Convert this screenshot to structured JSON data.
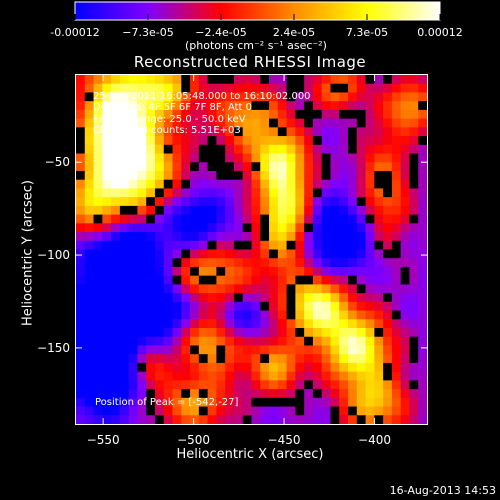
{
  "colorbar": {
    "labels": [
      "-0.00012",
      "−7.3e-05",
      "−2.4e-05",
      "2.4e-05",
      "7.3e-05",
      "0.00012"
    ],
    "unit": "(photons cm⁻² s⁻¹ asec⁻²)"
  },
  "info": {
    "line1": "25-Mar-2011 16:05:48.000 to 16:10:02.000",
    "line2": "Detectors: 4F 5F 6F 7F 8F, Att 0",
    "line3": "Energy Range: 25.0 - 50.0 keV",
    "line4": "Clean   Total counts: 5.51E+03"
  },
  "peak_label": "Position of Peak = [-542,-27]",
  "date_stamp": "16-Aug-2013 14:53",
  "chart_data": {
    "type": "heatmap",
    "title": "Reconstructed RHESSI Image",
    "xlabel": "Heliocentric X (arcsec)",
    "ylabel": "Heliocentric Y (arcsec)",
    "xlim": [
      -565,
      -371
    ],
    "ylim": [
      -191,
      -3
    ],
    "xticks": [
      -550,
      -500,
      -450,
      -400
    ],
    "yticks": [
      -50,
      -100,
      -150
    ],
    "xtick_labels": [
      "−550",
      "−500",
      "−450",
      "−400"
    ],
    "ytick_labels": [
      "−50",
      "−100",
      "−150"
    ],
    "color_range": [
      -0.00012,
      0.00012
    ],
    "colormap": [
      "#0000ff",
      "#7f00ff",
      "#ff0000",
      "#ff8c00",
      "#ffff00",
      "#ffffff"
    ],
    "sources": [
      {
        "x": -542,
        "y": -27,
        "amp": 1.0,
        "sx": 14,
        "sy": 22
      },
      {
        "x": -530,
        "y": -55,
        "amp": 0.7,
        "sx": 16,
        "sy": 18
      },
      {
        "x": -555,
        "y": -75,
        "amp": 0.55,
        "sx": 12,
        "sy": 16
      },
      {
        "x": -515,
        "y": -10,
        "amp": 0.6,
        "sx": 12,
        "sy": 10
      },
      {
        "x": -470,
        "y": -25,
        "amp": 0.5,
        "sx": 14,
        "sy": 12
      },
      {
        "x": -450,
        "y": -75,
        "amp": 0.85,
        "sx": 10,
        "sy": 22
      },
      {
        "x": -455,
        "y": -48,
        "amp": 0.45,
        "sx": 12,
        "sy": 10
      },
      {
        "x": -490,
        "y": -110,
        "amp": 0.5,
        "sx": 16,
        "sy": 10
      },
      {
        "x": -432,
        "y": -128,
        "amp": 0.85,
        "sx": 12,
        "sy": 12
      },
      {
        "x": -410,
        "y": -150,
        "amp": 0.85,
        "sx": 13,
        "sy": 13
      },
      {
        "x": -400,
        "y": -180,
        "amp": 0.6,
        "sx": 12,
        "sy": 12
      },
      {
        "x": -455,
        "y": -160,
        "amp": 0.55,
        "sx": 10,
        "sy": 10
      },
      {
        "x": -490,
        "y": -148,
        "amp": 0.55,
        "sx": 12,
        "sy": 12
      },
      {
        "x": -500,
        "y": -180,
        "amp": 0.5,
        "sx": 14,
        "sy": 10
      },
      {
        "x": -525,
        "y": -160,
        "amp": 0.35,
        "sx": 8,
        "sy": 8
      },
      {
        "x": -395,
        "y": -65,
        "amp": 0.45,
        "sx": 10,
        "sy": 22
      },
      {
        "x": -380,
        "y": -20,
        "amp": 0.5,
        "sx": 10,
        "sy": 10
      },
      {
        "x": -420,
        "y": -10,
        "amp": 0.45,
        "sx": 10,
        "sy": 8
      },
      {
        "x": -540,
        "y": -100,
        "amp": -0.7,
        "sx": 16,
        "sy": 14
      },
      {
        "x": -550,
        "y": -150,
        "amp": -0.8,
        "sx": 14,
        "sy": 22
      },
      {
        "x": -500,
        "y": -80,
        "amp": -0.4,
        "sx": 12,
        "sy": 10
      },
      {
        "x": -420,
        "y": -90,
        "amp": -0.5,
        "sx": 14,
        "sy": 14
      },
      {
        "x": -520,
        "y": -130,
        "amp": -0.5,
        "sx": 12,
        "sy": 10
      },
      {
        "x": -475,
        "y": -135,
        "amp": -0.3,
        "sx": 10,
        "sy": 8
      }
    ]
  }
}
